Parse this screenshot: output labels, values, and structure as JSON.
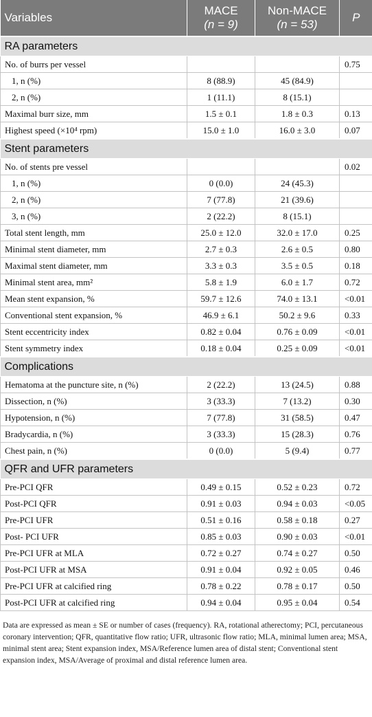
{
  "header": {
    "variables": "Variables",
    "mace": [
      "MACE",
      "(n = 9)"
    ],
    "nonmace": [
      "Non-MACE",
      "(n = 53)"
    ],
    "p": "P"
  },
  "sections": [
    {
      "title": "RA parameters",
      "rows": [
        [
          "No. of burrs per vessel",
          null,
          null,
          "0.75"
        ],
        [
          "1, n (%)",
          "8 (88.9)",
          "45 (84.9)",
          null
        ],
        [
          "2, n (%)",
          "1 (11.1)",
          "8 (15.1)",
          null
        ],
        [
          "Maximal burr size, mm",
          "1.5 ± 0.1",
          "1.8 ± 0.3",
          "0.13"
        ],
        [
          "Highest speed (×10⁴ rpm)",
          "15.0 ± 1.0",
          "16.0 ± 3.0",
          "0.07"
        ]
      ]
    },
    {
      "title": "Stent parameters",
      "rows": [
        [
          "No. of stents pre vessel",
          null,
          null,
          "0.02"
        ],
        [
          "1, n (%)",
          "0 (0.0)",
          "24 (45.3)",
          null
        ],
        [
          "2, n (%)",
          "7 (77.8)",
          "21 (39.6)",
          null
        ],
        [
          "3, n (%)",
          "2 (22.2)",
          "8 (15.1)",
          null
        ],
        [
          "Total stent length, mm",
          "25.0 ± 12.0",
          "32.0 ± 17.0",
          "0.25"
        ],
        [
          "Minimal stent diameter, mm",
          "2.7 ± 0.3",
          "2.6 ± 0.5",
          "0.80"
        ],
        [
          "Maximal stent diameter, mm",
          "3.3 ± 0.3",
          "3.5 ± 0.5",
          "0.18"
        ],
        [
          "Minimal stent area, mm²",
          "5.8 ± 1.9",
          "6.0 ± 1.7",
          "0.72"
        ],
        [
          "Mean stent expansion, %",
          "59.7 ± 12.6",
          "74.0 ± 13.1",
          "<0.01"
        ],
        [
          "Conventional stent expansion, %",
          "46.9 ± 6.1",
          "50.2 ± 9.6",
          "0.33"
        ],
        [
          "Stent eccentricity index",
          "0.82 ± 0.04",
          "0.76 ± 0.09",
          "<0.01"
        ],
        [
          "Stent symmetry index",
          "0.18 ± 0.04",
          "0.25 ± 0.09",
          "<0.01"
        ]
      ]
    },
    {
      "title": "Complications",
      "rows": [
        [
          "Hematoma at the puncture site, n (%)",
          "2 (22.2)",
          "13 (24.5)",
          "0.88"
        ],
        [
          "Dissection, n (%)",
          "3 (33.3)",
          "7 (13.2)",
          "0.30"
        ],
        [
          "Hypotension, n (%)",
          "7 (77.8)",
          "31 (58.5)",
          "0.47"
        ],
        [
          "Bradycardia, n (%)",
          "3 (33.3)",
          "15 (28.3)",
          "0.76"
        ],
        [
          "Chest pain, n (%)",
          "0 (0.0)",
          "5 (9.4)",
          "0.77"
        ]
      ]
    },
    {
      "title": "QFR and UFR parameters",
      "rows": [
        [
          "Pre-PCI QFR",
          "0.49 ± 0.15",
          "0.52 ± 0.23",
          "0.72"
        ],
        [
          "Post-PCI QFR",
          "0.91 ± 0.03",
          "0.94 ± 0.03",
          "<0.05"
        ],
        [
          "Pre-PCI UFR",
          "0.51 ± 0.16",
          "0.58 ± 0.18",
          "0.27"
        ],
        [
          "Post- PCI UFR",
          "0.85 ± 0.03",
          "0.90 ± 0.03",
          "<0.01"
        ],
        [
          "Pre-PCI UFR at MLA",
          "0.72 ± 0.27",
          "0.74 ± 0.27",
          "0.50"
        ],
        [
          "Post-PCI UFR at MSA",
          "0.91 ± 0.04",
          "0.92 ± 0.05",
          "0.46"
        ],
        [
          "Pre-PCI UFR at calcified ring",
          "0.78 ± 0.22",
          "0.78 ± 0.17",
          "0.50"
        ],
        [
          "Post-PCI UFR at calcified ring",
          "0.94 ± 0.04",
          "0.95 ± 0.04",
          "0.54"
        ]
      ]
    }
  ],
  "footnote": "Data are expressed as mean ± SE or number of cases (frequency). RA, rotational atherectomy; PCI, percutaneous coronary intervention; QFR, quantitative flow ratio; UFR, ultrasonic flow ratio; MLA, minimal lumen area; MSA, minimal stent area; Stent expansion index, MSA/Reference lumen area of distal stent; Conventional stent expansion index, MSA/Average of proximal and distal reference lumen area."
}
